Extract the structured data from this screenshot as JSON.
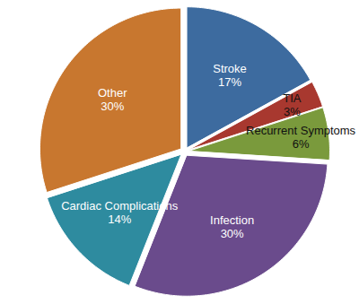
{
  "chart_data": {
    "type": "pie",
    "categories": [
      "Stroke",
      "TIA",
      "Recurrent Symptoms",
      "Infection",
      "Cardiac Complications",
      "Other"
    ],
    "values": [
      17,
      3,
      6,
      30,
      14,
      30
    ],
    "value_labels": [
      "17%",
      "3%",
      "6%",
      "30%",
      "14%",
      "30%"
    ],
    "colors": [
      "#3d6b9f",
      "#a8382f",
      "#7a9a3c",
      "#6a4b8c",
      "#2e8b9f",
      "#c8772f"
    ],
    "data_labels": true
  }
}
